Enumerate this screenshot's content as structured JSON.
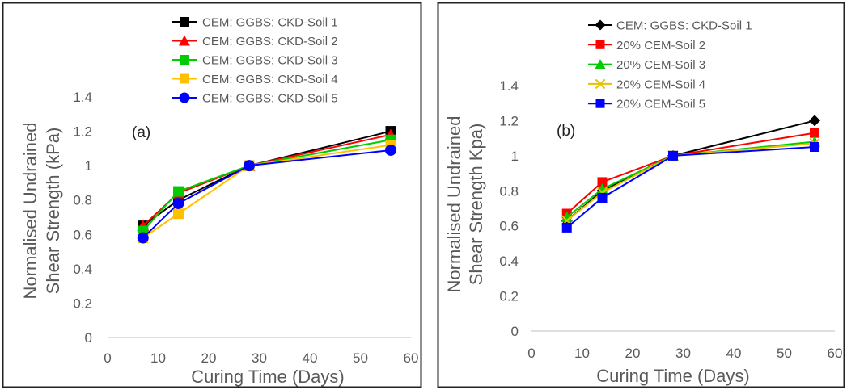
{
  "chart_data": [
    {
      "type": "line",
      "panel_label": "(a)",
      "xlabel": "Curing Time (Days)",
      "ylabel": "Normalised Undrained Shear Strength (kPa)",
      "ylabel_lines": [
        "Normalised Undrained",
        "Shear Strength (kPa)"
      ],
      "xlim": [
        0,
        60
      ],
      "ylim": [
        0,
        1.4
      ],
      "x_ticks": [
        "0",
        "10",
        "20",
        "30",
        "40",
        "50",
        "60"
      ],
      "y_ticks": [
        "0",
        "0.2",
        "0.4",
        "0.6",
        "0.8",
        "1",
        "1.2",
        "1.4"
      ],
      "grid": false,
      "legend_position": "top",
      "x": [
        7,
        14,
        28,
        56
      ],
      "series": [
        {
          "name": "CEM: GGBS: CKD-Soil 1",
          "values": [
            0.65,
            0.8,
            1.0,
            1.2
          ],
          "color": "#000000",
          "marker": "square"
        },
        {
          "name": "CEM: GGBS: CKD-Soil 2",
          "values": [
            0.65,
            0.84,
            1.0,
            1.18
          ],
          "color": "#ff0000",
          "marker": "triangle"
        },
        {
          "name": "CEM: GGBS: CKD-Soil 3",
          "values": [
            0.62,
            0.85,
            1.0,
            1.15
          ],
          "color": "#00cc00",
          "marker": "square"
        },
        {
          "name": "CEM: GGBS: CKD-Soil 4",
          "values": [
            0.58,
            0.72,
            1.0,
            1.12
          ],
          "color": "#ffc000",
          "marker": "square"
        },
        {
          "name": "CEM: GGBS: CKD-Soil 5",
          "values": [
            0.58,
            0.78,
            1.0,
            1.09
          ],
          "color": "#0000ff",
          "marker": "circle"
        }
      ]
    },
    {
      "type": "line",
      "panel_label": "(b)",
      "xlabel": "Curing Time (Days)",
      "ylabel": "Normalised Undrained Shear Strength Kpa)",
      "ylabel_lines": [
        "Normalised Undrained",
        "Shear Strength Kpa)"
      ],
      "xlim": [
        0,
        60
      ],
      "ylim": [
        0,
        1.4
      ],
      "x_ticks": [
        "0",
        "10",
        "20",
        "30",
        "40",
        "50",
        "60"
      ],
      "y_ticks": [
        "0",
        "0.2",
        "0.4",
        "0.6",
        "0.8",
        "1",
        "1.2",
        "1.4"
      ],
      "grid": false,
      "legend_position": "top",
      "x": [
        7,
        14,
        28,
        56
      ],
      "series": [
        {
          "name": "CEM: GGBS: CKD-Soil 1",
          "values": [
            0.63,
            0.8,
            1.0,
            1.2
          ],
          "color": "#000000",
          "marker": "diamond"
        },
        {
          "name": "20% CEM-Soil 2",
          "values": [
            0.67,
            0.85,
            1.0,
            1.13
          ],
          "color": "#ff0000",
          "marker": "square"
        },
        {
          "name": "20% CEM-Soil 3",
          "values": [
            0.65,
            0.81,
            1.0,
            1.08
          ],
          "color": "#00cc00",
          "marker": "triangle"
        },
        {
          "name": "20% CEM-Soil 4",
          "values": [
            0.63,
            0.79,
            1.0,
            1.07
          ],
          "color": "#e8c000",
          "marker": "x"
        },
        {
          "name": "20% CEM-Soil 5",
          "values": [
            0.59,
            0.76,
            1.0,
            1.05
          ],
          "color": "#0000ff",
          "marker": "square"
        }
      ]
    }
  ]
}
